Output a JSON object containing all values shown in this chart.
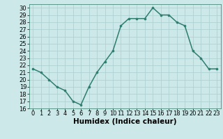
{
  "x": [
    0,
    1,
    2,
    3,
    4,
    5,
    6,
    7,
    8,
    9,
    10,
    11,
    12,
    13,
    14,
    15,
    16,
    17,
    18,
    19,
    20,
    21,
    22,
    23
  ],
  "y": [
    21.5,
    21.0,
    20.0,
    19.0,
    18.5,
    17.0,
    16.5,
    19.0,
    21.0,
    22.5,
    24.0,
    27.5,
    28.5,
    28.5,
    28.5,
    30.0,
    29.0,
    29.0,
    28.0,
    27.5,
    24.0,
    23.0,
    21.5,
    21.5
  ],
  "line_color": "#2e7d6e",
  "marker_color": "#2e7d6e",
  "bg_plot": "#cce8e8",
  "bg_fig": "#cce8e8",
  "grid_color": "#aacece",
  "xlabel": "Humidex (Indice chaleur)",
  "xlim": [
    -0.5,
    23.5
  ],
  "ylim": [
    16,
    30.5
  ],
  "yticks": [
    16,
    17,
    18,
    19,
    20,
    21,
    22,
    23,
    24,
    25,
    26,
    27,
    28,
    29,
    30
  ],
  "xtick_labels": [
    "0",
    "1",
    "2",
    "3",
    "4",
    "5",
    "6",
    "7",
    "8",
    "9",
    "10",
    "11",
    "12",
    "13",
    "14",
    "15",
    "16",
    "17",
    "18",
    "19",
    "20",
    "21",
    "22",
    "23"
  ],
  "xlabel_fontsize": 7.5,
  "tick_fontsize": 6.0,
  "linewidth": 1.1,
  "markersize": 2.2
}
